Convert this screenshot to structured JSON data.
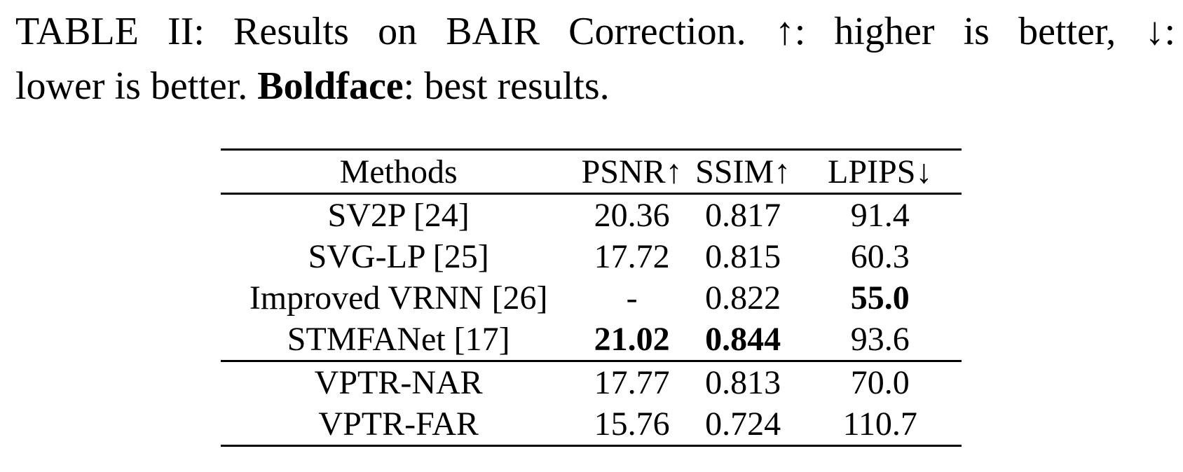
{
  "caption": {
    "line1": "TABLE II: Results on BAIR Correction. ↑: higher is better, ↓:",
    "line2_pre": "lower is better. ",
    "line2_bold": "Boldface",
    "line2_post": ": best results."
  },
  "table": {
    "columns": [
      {
        "label": "Methods"
      },
      {
        "label": "PSNR↑"
      },
      {
        "label": "SSIM↑"
      },
      {
        "label": "LPIPS↓"
      }
    ],
    "groups": [
      {
        "rows": [
          {
            "cells": [
              {
                "text": "SV2P [24]",
                "bold": false
              },
              {
                "text": "20.36",
                "bold": false
              },
              {
                "text": "0.817",
                "bold": false
              },
              {
                "text": "91.4",
                "bold": false
              }
            ]
          },
          {
            "cells": [
              {
                "text": "SVG-LP [25]",
                "bold": false
              },
              {
                "text": "17.72",
                "bold": false
              },
              {
                "text": "0.815",
                "bold": false
              },
              {
                "text": "60.3",
                "bold": false
              }
            ]
          },
          {
            "cells": [
              {
                "text": "Improved VRNN [26]",
                "bold": false
              },
              {
                "text": "-",
                "bold": false
              },
              {
                "text": "0.822",
                "bold": false
              },
              {
                "text": "55.0",
                "bold": true
              }
            ]
          },
          {
            "cells": [
              {
                "text": "STMFANet [17]",
                "bold": false
              },
              {
                "text": "21.02",
                "bold": true
              },
              {
                "text": "0.844",
                "bold": true
              },
              {
                "text": "93.6",
                "bold": false
              }
            ]
          }
        ]
      },
      {
        "rows": [
          {
            "cells": [
              {
                "text": "VPTR-NAR",
                "bold": false
              },
              {
                "text": "17.77",
                "bold": false
              },
              {
                "text": "0.813",
                "bold": false
              },
              {
                "text": "70.0",
                "bold": false
              }
            ]
          },
          {
            "cells": [
              {
                "text": "VPTR-FAR",
                "bold": false
              },
              {
                "text": "15.76",
                "bold": false
              },
              {
                "text": "0.724",
                "bold": false
              },
              {
                "text": "110.7",
                "bold": false
              }
            ]
          }
        ]
      }
    ]
  },
  "colors": {
    "text": "#000000",
    "background": "#ffffff"
  }
}
